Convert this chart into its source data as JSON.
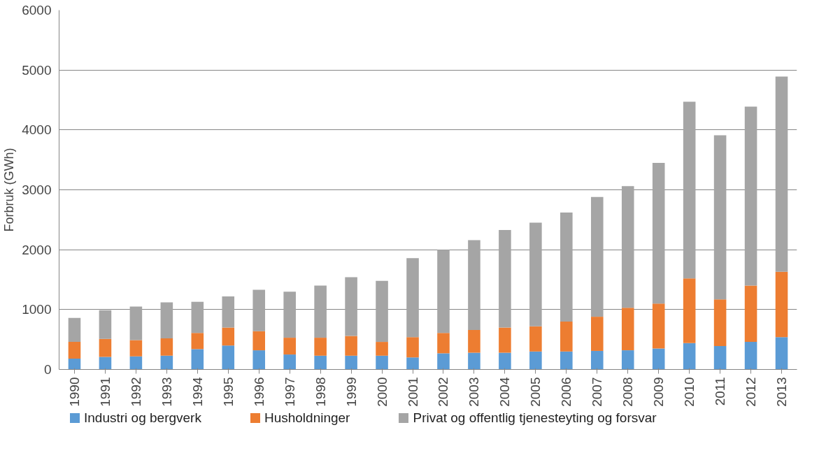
{
  "chart_data": {
    "type": "bar",
    "stacked": true,
    "ylabel": "Forbruk (GWh)",
    "categories": [
      "1990",
      "1991",
      "1992",
      "1993",
      "1994",
      "1995",
      "1996",
      "1997",
      "1998",
      "1999",
      "2000",
      "2001",
      "2002",
      "2003",
      "2004",
      "2005",
      "2006",
      "2007",
      "2008",
      "2009",
      "2010",
      "2011",
      "2012",
      "2013"
    ],
    "series": [
      {
        "name": "Industri og bergverk",
        "color": "#5b9bd5",
        "values": [
          180,
          210,
          220,
          230,
          340,
          400,
          320,
          250,
          230,
          230,
          230,
          200,
          270,
          280,
          280,
          300,
          300,
          310,
          320,
          350,
          440,
          390,
          460,
          540
        ]
      },
      {
        "name": "Husholdninger",
        "color": "#ed7d31",
        "values": [
          280,
          300,
          270,
          290,
          270,
          300,
          320,
          280,
          300,
          330,
          230,
          340,
          340,
          380,
          420,
          420,
          500,
          570,
          710,
          750,
          1080,
          780,
          940,
          1090
        ]
      },
      {
        "name": "Privat og offentlig tjenesteyting og forsvar",
        "color": "#a5a5a5",
        "values": [
          400,
          480,
          560,
          600,
          520,
          520,
          690,
          770,
          870,
          980,
          1020,
          1320,
          1390,
          1500,
          1630,
          1730,
          1820,
          2000,
          2030,
          2350,
          2950,
          2740,
          2990,
          3260
        ]
      }
    ],
    "ylim": [
      0,
      6000
    ],
    "yticks": [
      0,
      1000,
      2000,
      3000,
      4000,
      5000,
      6000
    ],
    "grid": "y",
    "legend": "bottom"
  }
}
